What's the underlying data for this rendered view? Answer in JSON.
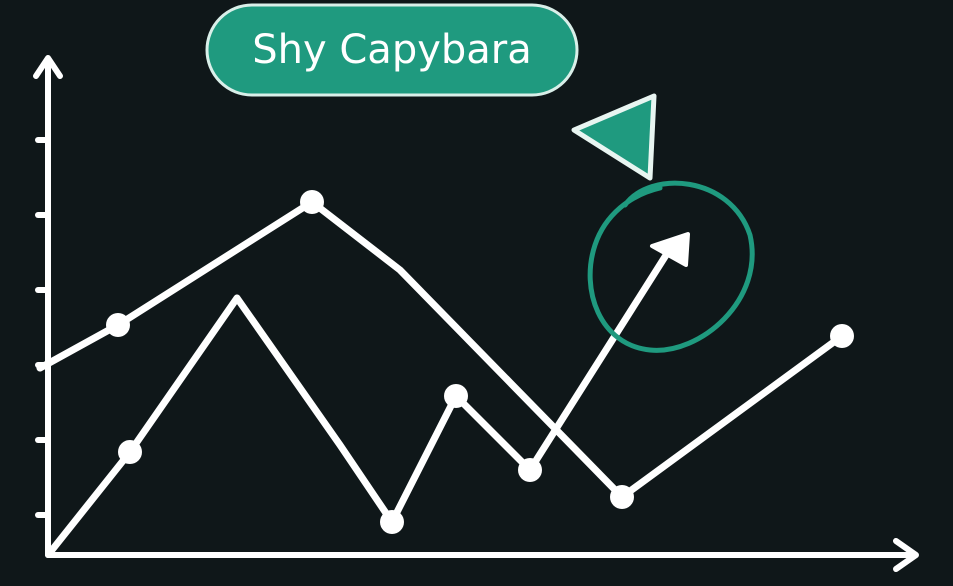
{
  "label": "Shy Capybara"
}
